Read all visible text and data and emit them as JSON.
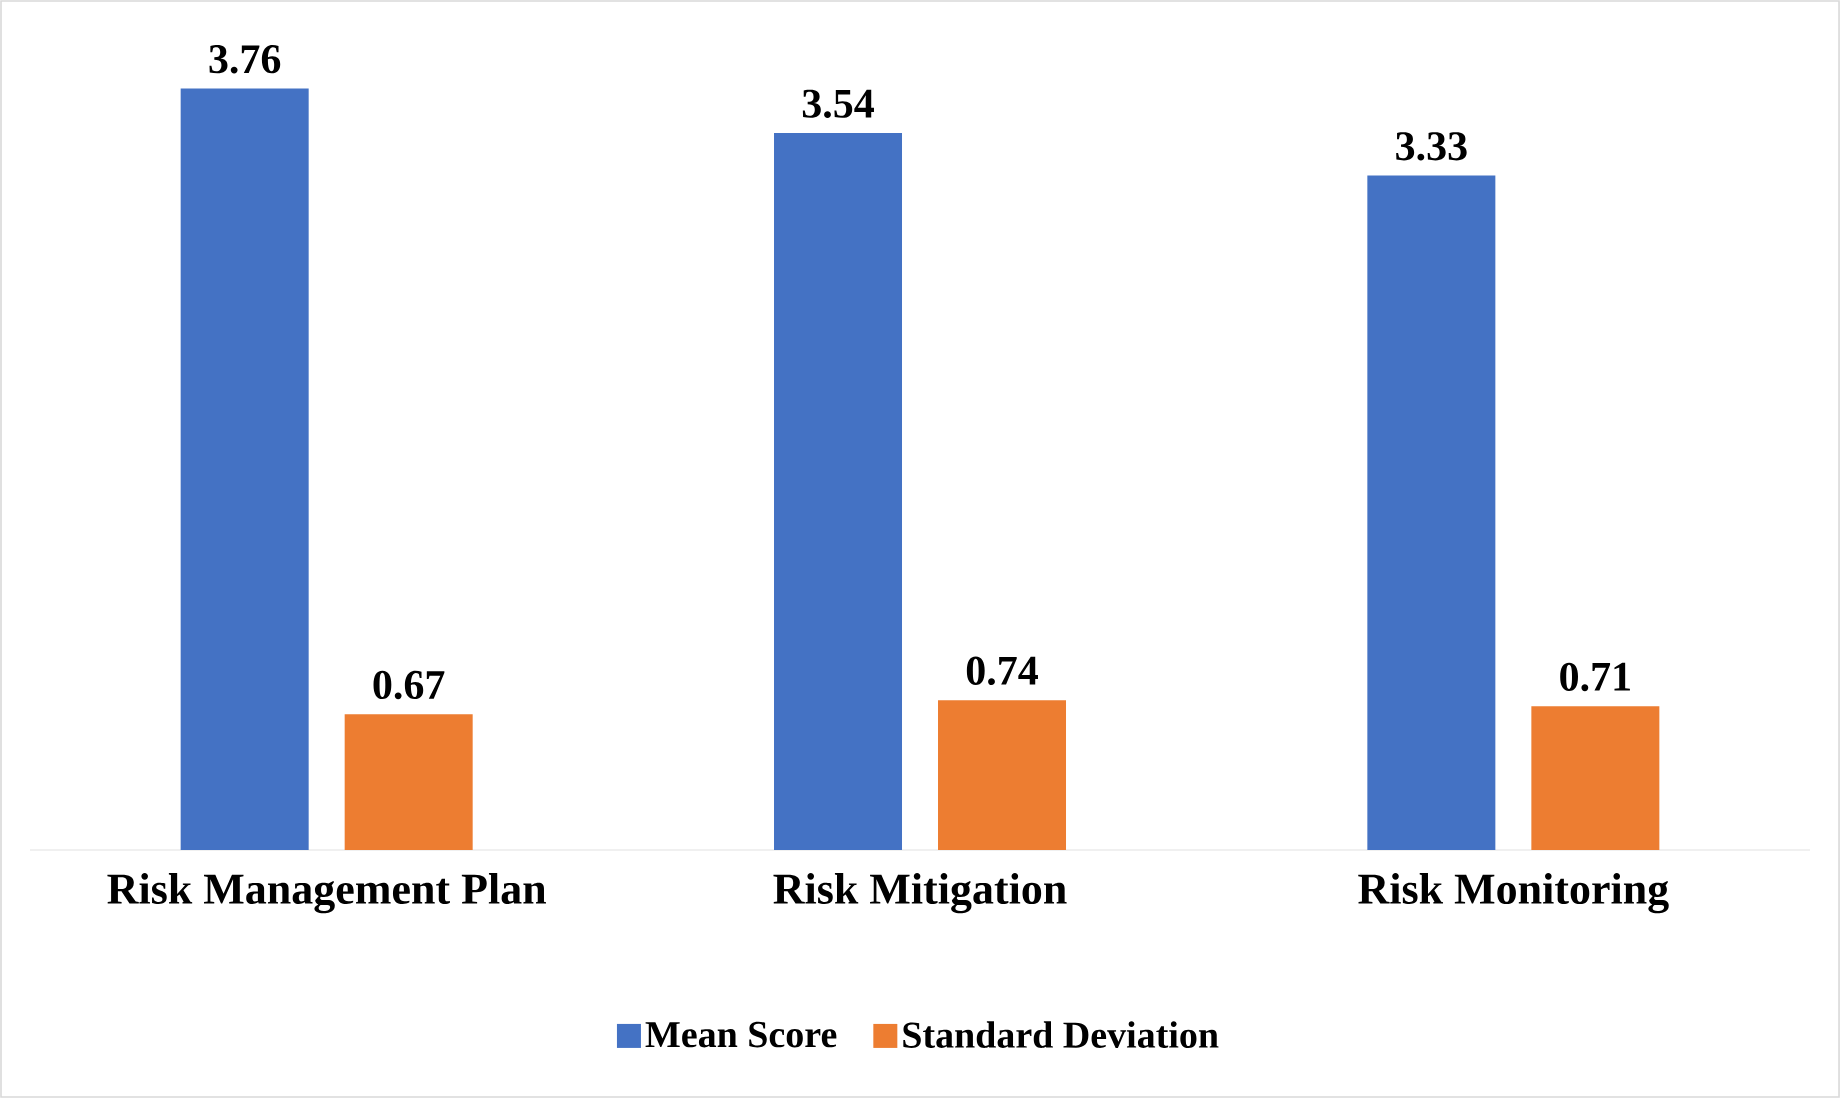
{
  "chart_data": {
    "type": "bar",
    "categories": [
      "Risk Management Plan",
      "Risk Mitigation",
      "Risk Monitoring"
    ],
    "series": [
      {
        "name": "Mean Score",
        "color": "#4472c4",
        "values": [
          3.76,
          3.54,
          3.33
        ]
      },
      {
        "name": "Standard Deviation",
        "color": "#ed7d31",
        "values": [
          0.67,
          0.74,
          0.71
        ]
      }
    ],
    "data_labels": true,
    "legend": "bottom"
  }
}
